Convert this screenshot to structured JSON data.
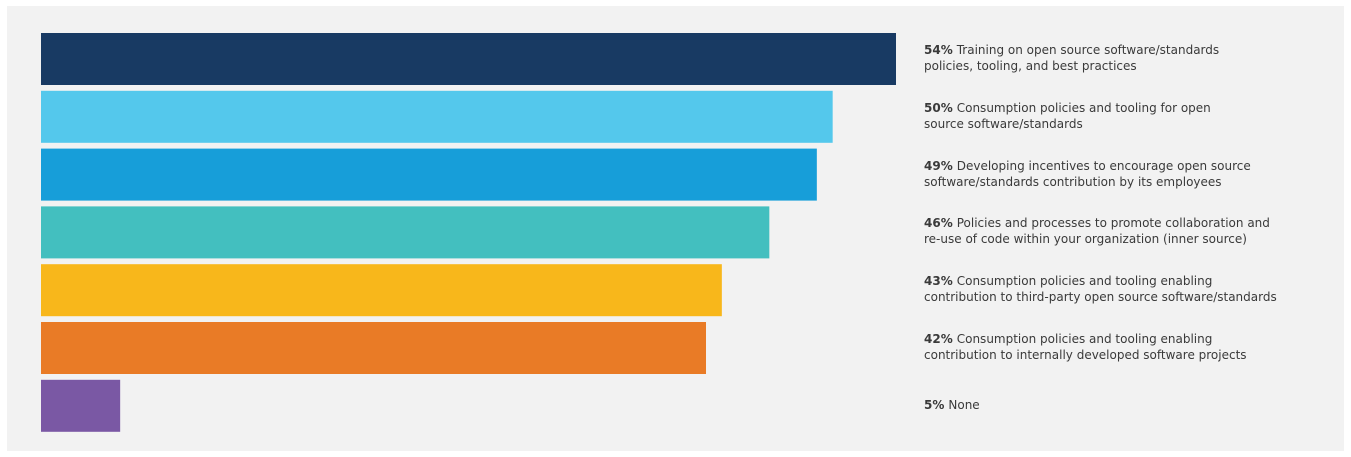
{
  "chart_data": {
    "type": "bar",
    "orientation": "horizontal",
    "value_unit": "%",
    "categories": [
      "Training on open source software/standards policies, tooling, and best practices",
      "Consumption policies and tooling for open source software/standards",
      "Developing incentives to encourage open source software/standards contribution by its employees",
      "Policies and processes to promote collaboration and re-use of code within your organization (inner source)",
      "Consumption policies and tooling enabling contribution to third-party open source software/standards",
      "Consumption policies and tooling enabling contribution to internally developed software projects",
      "None"
    ],
    "values": [
      54,
      50,
      49,
      46,
      43,
      42,
      5
    ],
    "value_labels": [
      "54%",
      "50%",
      "49%",
      "46%",
      "43%",
      "42%",
      "5%"
    ],
    "colors": [
      "#183a63",
      "#54c8ec",
      "#179ed9",
      "#43bfbf",
      "#f8b71b",
      "#e97b26",
      "#7a58a4"
    ],
    "label_lines": [
      [
        "Training on open source software/standards",
        "policies, tooling, and best practices"
      ],
      [
        "Consumption policies and tooling for open",
        "source software/standards"
      ],
      [
        "Developing incentives to encourage open source",
        "software/standards contribution by its employees"
      ],
      [
        "Policies and processes to promote collaboration and",
        "re-use of code within your organization (inner source)"
      ],
      [
        "Consumption policies and tooling enabling",
        "contribution to third-party open source software/standards"
      ],
      [
        "Consumption policies and tooling enabling",
        "contribution to internally developed software projects"
      ],
      [
        "None"
      ]
    ],
    "title": "",
    "xlabel": "",
    "ylabel": "",
    "xlim": [
      0,
      54
    ],
    "grid": false,
    "legend": "none"
  }
}
